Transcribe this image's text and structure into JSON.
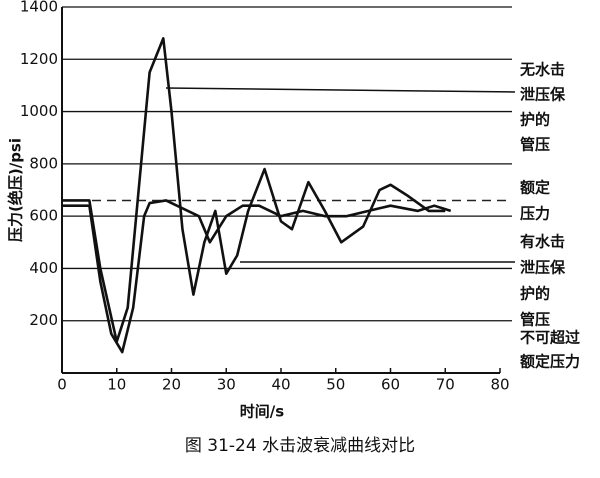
{
  "chart_data": {
    "type": "line",
    "caption": "图 31-24   水击波衰减曲线对比",
    "xlabel": "时间/s",
    "ylabel": "压力(绝压)/psi",
    "xlim": [
      0,
      80
    ],
    "ylim": [
      0,
      1400
    ],
    "xticks": [
      0,
      10,
      20,
      30,
      40,
      50,
      60,
      70,
      80
    ],
    "yticks": [
      200,
      400,
      600,
      800,
      1000,
      1200,
      1400
    ],
    "grid": true,
    "reference_line": {
      "value": 660,
      "style": "dashed",
      "color": "#222222"
    },
    "series": [
      {
        "color": "#111111",
        "x": [
          0,
          5,
          7,
          10,
          12,
          14,
          16,
          18.5,
          20,
          22,
          24,
          26,
          28,
          30,
          32,
          34,
          37,
          40,
          42,
          45,
          48,
          51,
          55,
          58,
          60,
          63,
          67,
          70
        ],
        "values": [
          660,
          660,
          400,
          120,
          250,
          700,
          1150,
          1280,
          1000,
          550,
          300,
          500,
          620,
          380,
          450,
          620,
          780,
          580,
          550,
          730,
          620,
          500,
          560,
          700,
          720,
          680,
          620,
          620
        ]
      },
      {
        "color": "#111111",
        "x": [
          0,
          5,
          7,
          9,
          11,
          13,
          15,
          16,
          19,
          23,
          25,
          27,
          30,
          33,
          36,
          40,
          44,
          48,
          52,
          56,
          60,
          65,
          68,
          71
        ],
        "values": [
          640,
          640,
          350,
          150,
          80,
          250,
          600,
          650,
          660,
          620,
          600,
          500,
          600,
          640,
          640,
          600,
          620,
          600,
          600,
          620,
          640,
          620,
          640,
          620
        ]
      }
    ],
    "annotations": [
      {
        "lines": [
          "无水击",
          "泄压保",
          "护的",
          "管压"
        ]
      },
      {
        "lines": [
          "额定",
          "压力"
        ]
      },
      {
        "lines": [
          "有水击",
          "泄压保",
          "护的",
          "管压"
        ]
      },
      {
        "lines": [
          "不可超过",
          "额定压力"
        ]
      }
    ]
  }
}
